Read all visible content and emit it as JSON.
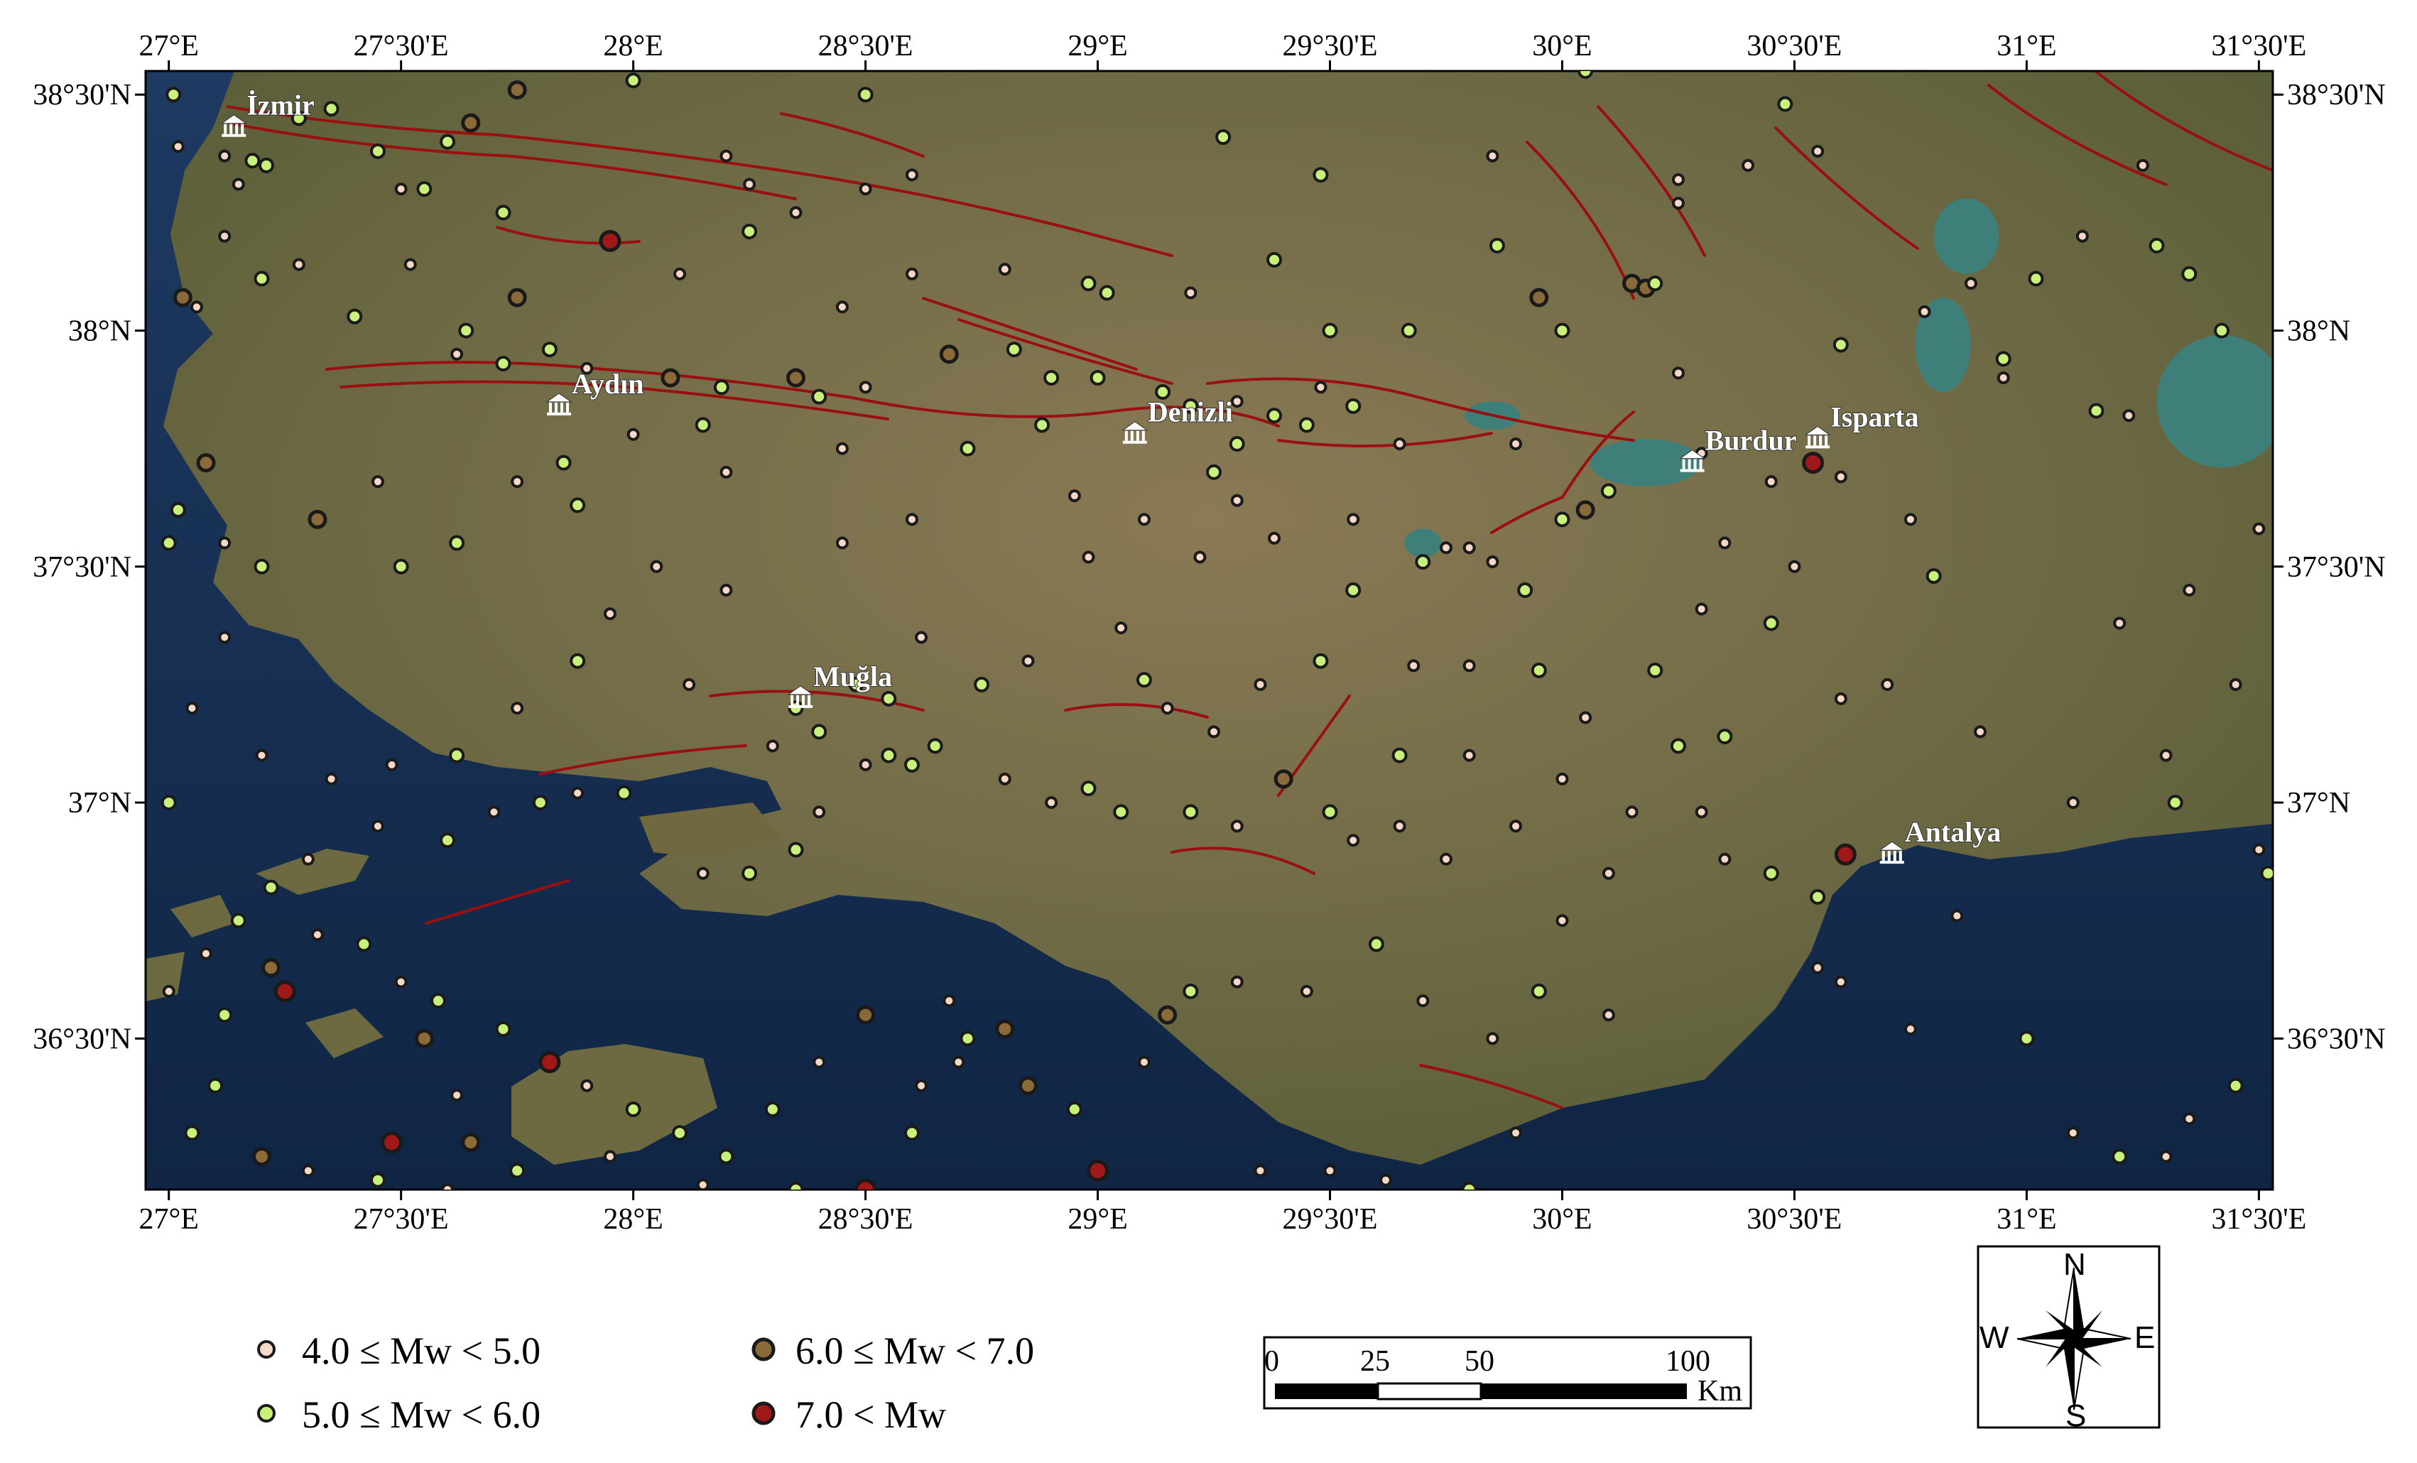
{
  "map": {
    "lon_min": 26.95,
    "lon_max": 31.53,
    "lat_min": 36.18,
    "lat_max": 38.55,
    "lon_ticks": [
      {
        "value": 27.0,
        "label": "27°E"
      },
      {
        "value": 27.5,
        "label": "27°30'E"
      },
      {
        "value": 28.0,
        "label": "28°E"
      },
      {
        "value": 28.5,
        "label": "28°30'E"
      },
      {
        "value": 29.0,
        "label": "29°E"
      },
      {
        "value": 29.5,
        "label": "29°30'E"
      },
      {
        "value": 30.0,
        "label": "30°E"
      },
      {
        "value": 30.5,
        "label": "30°30'E"
      },
      {
        "value": 31.0,
        "label": "31°E"
      },
      {
        "value": 31.5,
        "label": "31°30'E"
      }
    ],
    "lat_ticks": [
      {
        "value": 38.5,
        "label": "38°30'N"
      },
      {
        "value": 38.0,
        "label": "38°N"
      },
      {
        "value": 37.5,
        "label": "37°30'N"
      },
      {
        "value": 37.0,
        "label": "37°N"
      },
      {
        "value": 36.5,
        "label": "36°30'N"
      }
    ],
    "cities": [
      {
        "name": "İzmir",
        "lon": 27.14,
        "lat": 38.43
      },
      {
        "name": "Aydın",
        "lon": 27.84,
        "lat": 37.84
      },
      {
        "name": "Denizli",
        "lon": 29.08,
        "lat": 37.78
      },
      {
        "name": "Burdur",
        "lon": 30.28,
        "lat": 37.72
      },
      {
        "name": "Isparta",
        "lon": 30.55,
        "lat": 37.77
      },
      {
        "name": "Muğla",
        "lon": 28.36,
        "lat": 37.22
      },
      {
        "name": "Antalya",
        "lon": 30.71,
        "lat": 36.89
      }
    ],
    "lakes": [
      {
        "name": "",
        "lon": 30.18,
        "lat": 37.72,
        "rx": 0.12,
        "ry": 0.05
      },
      {
        "name": "",
        "lon": 30.87,
        "lat": 38.2,
        "rx": 0.07,
        "ry": 0.08
      },
      {
        "name": "",
        "lon": 30.82,
        "lat": 37.97,
        "rx": 0.06,
        "ry": 0.1
      },
      {
        "name": "",
        "lon": 31.42,
        "lat": 37.85,
        "rx": 0.14,
        "ry": 0.14
      },
      {
        "name": "",
        "lon": 29.7,
        "lat": 37.55,
        "rx": 0.04,
        "ry": 0.03
      },
      {
        "name": "",
        "lon": 29.85,
        "lat": 37.82,
        "rx": 0.06,
        "ry": 0.03
      }
    ]
  },
  "magnitude_classes": [
    {
      "key": "m4",
      "label": "4.0 ≤ Mw < 5.0",
      "fill": "#f6d8c6",
      "stroke": "#1a1a1a"
    },
    {
      "key": "m5",
      "label": "5.0 ≤ Mw < 6.0",
      "fill": "#c8f07a",
      "stroke": "#1a1a1a"
    },
    {
      "key": "m6",
      "label": "6.0 ≤ Mw < 7.0",
      "fill": "#8b6a3a",
      "stroke": "#1a1a1a"
    },
    {
      "key": "m7",
      "label": "7.0 < Mw",
      "fill": "#a01818",
      "stroke": "#1a1a1a"
    }
  ],
  "earthquakes": [
    [
      27.01,
      38.5,
      "m5"
    ],
    [
      27.02,
      38.39,
      "m4"
    ],
    [
      27.12,
      38.37,
      "m4"
    ],
    [
      27.18,
      38.36,
      "m5"
    ],
    [
      27.21,
      38.35,
      "m5"
    ],
    [
      27.15,
      38.31,
      "m4"
    ],
    [
      27.28,
      38.45,
      "m5"
    ],
    [
      27.35,
      38.47,
      "m5"
    ],
    [
      27.45,
      38.38,
      "m5"
    ],
    [
      27.6,
      38.4,
      "m5"
    ],
    [
      27.65,
      38.44,
      "m6"
    ],
    [
      27.75,
      38.51,
      "m6"
    ],
    [
      27.5,
      38.3,
      "m4"
    ],
    [
      27.55,
      38.3,
      "m5"
    ],
    [
      27.72,
      38.25,
      "m5"
    ],
    [
      28.0,
      38.53,
      "m5"
    ],
    [
      28.2,
      38.37,
      "m4"
    ],
    [
      28.25,
      38.31,
      "m4"
    ],
    [
      28.35,
      38.25,
      "m4"
    ],
    [
      28.5,
      38.3,
      "m4"
    ],
    [
      28.5,
      38.5,
      "m5"
    ],
    [
      28.6,
      38.33,
      "m4"
    ],
    [
      27.03,
      38.07,
      "m6"
    ],
    [
      27.06,
      38.05,
      "m4"
    ],
    [
      27.12,
      38.2,
      "m4"
    ],
    [
      27.2,
      38.11,
      "m5"
    ],
    [
      27.28,
      38.14,
      "m4"
    ],
    [
      27.4,
      38.03,
      "m5"
    ],
    [
      27.52,
      38.14,
      "m4"
    ],
    [
      27.64,
      38.0,
      "m5"
    ],
    [
      27.75,
      38.07,
      "m6"
    ],
    [
      27.82,
      37.96,
      "m5"
    ],
    [
      27.95,
      38.19,
      "m7"
    ],
    [
      28.1,
      38.12,
      "m4"
    ],
    [
      28.25,
      38.21,
      "m5"
    ],
    [
      27.62,
      37.95,
      "m4"
    ],
    [
      27.72,
      37.93,
      "m5"
    ],
    [
      27.9,
      37.92,
      "m4"
    ],
    [
      28.08,
      37.9,
      "m6"
    ],
    [
      28.19,
      37.88,
      "m5"
    ],
    [
      28.35,
      37.9,
      "m6"
    ],
    [
      28.4,
      37.86,
      "m5"
    ],
    [
      28.5,
      37.88,
      "m4"
    ],
    [
      28.68,
      37.95,
      "m6"
    ],
    [
      28.82,
      37.96,
      "m5"
    ],
    [
      28.9,
      37.9,
      "m5"
    ],
    [
      29.0,
      37.9,
      "m5"
    ],
    [
      29.14,
      37.87,
      "m5"
    ],
    [
      29.2,
      37.84,
      "m5"
    ],
    [
      29.3,
      37.85,
      "m4"
    ],
    [
      29.38,
      37.82,
      "m5"
    ],
    [
      29.45,
      37.8,
      "m5"
    ],
    [
      29.48,
      37.88,
      "m4"
    ],
    [
      29.55,
      37.84,
      "m5"
    ],
    [
      29.3,
      37.76,
      "m5"
    ],
    [
      29.25,
      37.7,
      "m5"
    ],
    [
      29.3,
      37.64,
      "m4"
    ],
    [
      28.98,
      38.1,
      "m5"
    ],
    [
      29.02,
      38.08,
      "m5"
    ],
    [
      28.8,
      38.13,
      "m4"
    ],
    [
      28.6,
      38.12,
      "m4"
    ],
    [
      28.45,
      38.05,
      "m4"
    ],
    [
      29.2,
      38.08,
      "m4"
    ],
    [
      29.38,
      38.15,
      "m5"
    ],
    [
      29.48,
      38.33,
      "m5"
    ],
    [
      29.27,
      38.41,
      "m5"
    ],
    [
      29.5,
      38.0,
      "m5"
    ],
    [
      29.67,
      38.0,
      "m5"
    ],
    [
      29.86,
      38.18,
      "m5"
    ],
    [
      29.85,
      38.37,
      "m4"
    ],
    [
      29.95,
      38.07,
      "m6"
    ],
    [
      30.0,
      38.0,
      "m5"
    ],
    [
      30.05,
      38.55,
      "m5"
    ],
    [
      30.15,
      38.1,
      "m6"
    ],
    [
      30.18,
      38.09,
      "m6"
    ],
    [
      30.2,
      38.1,
      "m5"
    ],
    [
      30.25,
      38.32,
      "m4"
    ],
    [
      30.25,
      38.27,
      "m4"
    ],
    [
      30.4,
      38.35,
      "m4"
    ],
    [
      30.48,
      38.48,
      "m5"
    ],
    [
      30.55,
      38.38,
      "m4"
    ],
    [
      30.6,
      37.97,
      "m5"
    ],
    [
      30.78,
      38.04,
      "m4"
    ],
    [
      30.88,
      38.1,
      "m4"
    ],
    [
      30.95,
      37.94,
      "m5"
    ],
    [
      31.02,
      38.11,
      "m5"
    ],
    [
      31.12,
      38.2,
      "m4"
    ],
    [
      31.25,
      38.35,
      "m4"
    ],
    [
      31.28,
      38.18,
      "m5"
    ],
    [
      31.35,
      38.12,
      "m5"
    ],
    [
      31.42,
      38.0,
      "m5"
    ],
    [
      31.15,
      37.83,
      "m5"
    ],
    [
      31.22,
      37.82,
      "m4"
    ],
    [
      30.95,
      37.9,
      "m4"
    ],
    [
      30.3,
      37.74,
      "m4"
    ],
    [
      30.45,
      37.68,
      "m4"
    ],
    [
      30.54,
      37.72,
      "m7"
    ],
    [
      30.6,
      37.69,
      "m4"
    ],
    [
      30.25,
      37.91,
      "m4"
    ],
    [
      30.1,
      37.66,
      "m5"
    ],
    [
      30.05,
      37.62,
      "m6"
    ],
    [
      30.0,
      37.6,
      "m5"
    ],
    [
      29.85,
      37.51,
      "m4"
    ],
    [
      29.8,
      37.54,
      "m4"
    ],
    [
      29.75,
      37.54,
      "m4"
    ],
    [
      29.7,
      37.51,
      "m5"
    ],
    [
      29.9,
      37.76,
      "m4"
    ],
    [
      29.65,
      37.76,
      "m4"
    ],
    [
      29.55,
      37.6,
      "m4"
    ],
    [
      28.98,
      37.52,
      "m4"
    ],
    [
      29.05,
      37.37,
      "m4"
    ],
    [
      29.1,
      37.26,
      "m5"
    ],
    [
      29.35,
      37.25,
      "m4"
    ],
    [
      29.48,
      37.3,
      "m5"
    ],
    [
      29.55,
      37.45,
      "m5"
    ],
    [
      29.68,
      37.29,
      "m4"
    ],
    [
      29.8,
      37.29,
      "m4"
    ],
    [
      29.92,
      37.45,
      "m5"
    ],
    [
      29.95,
      37.28,
      "m5"
    ],
    [
      30.05,
      37.18,
      "m4"
    ],
    [
      30.2,
      37.28,
      "m5"
    ],
    [
      30.3,
      37.41,
      "m4"
    ],
    [
      30.45,
      37.38,
      "m5"
    ],
    [
      30.6,
      37.22,
      "m4"
    ],
    [
      30.35,
      37.14,
      "m5"
    ],
    [
      30.25,
      37.12,
      "m5"
    ],
    [
      30.15,
      36.98,
      "m4"
    ],
    [
      30.3,
      36.98,
      "m4"
    ],
    [
      30.35,
      36.88,
      "m4"
    ],
    [
      30.45,
      36.85,
      "m5"
    ],
    [
      30.55,
      36.8,
      "m5"
    ],
    [
      30.61,
      36.89,
      "m7"
    ],
    [
      30.55,
      36.65,
      "m4"
    ],
    [
      30.6,
      36.62,
      "m4"
    ],
    [
      30.75,
      36.52,
      "m4"
    ],
    [
      30.85,
      36.76,
      "m4"
    ],
    [
      31.0,
      36.5,
      "m5"
    ],
    [
      31.1,
      36.3,
      "m4"
    ],
    [
      31.2,
      36.25,
      "m5"
    ],
    [
      31.3,
      36.25,
      "m4"
    ],
    [
      31.35,
      36.33,
      "m4"
    ],
    [
      31.45,
      36.4,
      "m5"
    ],
    [
      31.5,
      36.9,
      "m4"
    ],
    [
      31.52,
      36.85,
      "m5"
    ],
    [
      31.32,
      37.0,
      "m5"
    ],
    [
      31.3,
      37.1,
      "m4"
    ],
    [
      31.45,
      37.25,
      "m4"
    ],
    [
      31.35,
      37.45,
      "m4"
    ],
    [
      31.5,
      37.58,
      "m4"
    ],
    [
      31.2,
      37.38,
      "m4"
    ],
    [
      30.8,
      37.48,
      "m5"
    ],
    [
      30.75,
      37.6,
      "m4"
    ],
    [
      28.12,
      37.25,
      "m4"
    ],
    [
      28.35,
      37.2,
      "m5"
    ],
    [
      28.48,
      37.25,
      "m5"
    ],
    [
      28.55,
      37.22,
      "m5"
    ],
    [
      28.3,
      37.12,
      "m4"
    ],
    [
      28.4,
      37.15,
      "m5"
    ],
    [
      28.5,
      37.08,
      "m4"
    ],
    [
      28.55,
      37.1,
      "m5"
    ],
    [
      28.6,
      37.08,
      "m5"
    ],
    [
      28.65,
      37.12,
      "m5"
    ],
    [
      28.8,
      37.05,
      "m4"
    ],
    [
      28.9,
      37.0,
      "m4"
    ],
    [
      28.98,
      37.03,
      "m5"
    ],
    [
      29.05,
      36.98,
      "m5"
    ],
    [
      29.2,
      36.98,
      "m5"
    ],
    [
      29.3,
      36.95,
      "m4"
    ],
    [
      29.4,
      37.05,
      "m6"
    ],
    [
      29.5,
      36.98,
      "m5"
    ],
    [
      29.55,
      36.92,
      "m4"
    ],
    [
      29.65,
      36.95,
      "m4"
    ],
    [
      29.75,
      36.88,
      "m4"
    ],
    [
      28.4,
      36.98,
      "m4"
    ],
    [
      28.35,
      36.9,
      "m5"
    ],
    [
      28.25,
      36.85,
      "m5"
    ],
    [
      28.15,
      36.85,
      "m4"
    ],
    [
      27.98,
      37.02,
      "m5"
    ],
    [
      27.88,
      37.02,
      "m4"
    ],
    [
      27.8,
      37.0,
      "m5"
    ],
    [
      27.7,
      36.98,
      "m4"
    ],
    [
      27.6,
      36.92,
      "m5"
    ],
    [
      27.45,
      36.95,
      "m4"
    ],
    [
      27.3,
      36.88,
      "m4"
    ],
    [
      27.22,
      36.82,
      "m5"
    ],
    [
      27.15,
      36.75,
      "m5"
    ],
    [
      27.08,
      36.68,
      "m4"
    ],
    [
      27.0,
      36.6,
      "m4"
    ],
    [
      27.12,
      36.55,
      "m5"
    ],
    [
      27.22,
      36.65,
      "m6"
    ],
    [
      27.25,
      36.6,
      "m7"
    ],
    [
      27.32,
      36.72,
      "m4"
    ],
    [
      27.42,
      36.7,
      "m5"
    ],
    [
      27.5,
      36.62,
      "m4"
    ],
    [
      27.58,
      36.58,
      "m5"
    ],
    [
      27.72,
      36.52,
      "m5"
    ],
    [
      27.55,
      36.5,
      "m6"
    ],
    [
      27.62,
      36.38,
      "m4"
    ],
    [
      27.48,
      36.28,
      "m7"
    ],
    [
      27.65,
      36.28,
      "m6"
    ],
    [
      27.82,
      36.45,
      "m7"
    ],
    [
      27.9,
      36.4,
      "m4"
    ],
    [
      28.0,
      36.35,
      "m5"
    ],
    [
      28.1,
      36.3,
      "m5"
    ],
    [
      28.2,
      36.25,
      "m5"
    ],
    [
      28.3,
      36.35,
      "m5"
    ],
    [
      28.4,
      36.45,
      "m4"
    ],
    [
      28.5,
      36.55,
      "m6"
    ],
    [
      28.5,
      36.18,
      "m7"
    ],
    [
      28.6,
      36.3,
      "m5"
    ],
    [
      28.7,
      36.45,
      "m4"
    ],
    [
      28.8,
      36.52,
      "m6"
    ],
    [
      28.85,
      36.4,
      "m6"
    ],
    [
      28.95,
      36.35,
      "m5"
    ],
    [
      29.0,
      36.22,
      "m7"
    ],
    [
      29.1,
      36.45,
      "m4"
    ],
    [
      29.15,
      36.55,
      "m6"
    ],
    [
      29.2,
      36.6,
      "m5"
    ],
    [
      29.3,
      36.62,
      "m4"
    ],
    [
      29.45,
      36.6,
      "m4"
    ],
    [
      29.6,
      36.7,
      "m5"
    ],
    [
      29.7,
      36.58,
      "m4"
    ],
    [
      29.85,
      36.5,
      "m4"
    ],
    [
      29.95,
      36.6,
      "m5"
    ],
    [
      30.1,
      36.55,
      "m4"
    ],
    [
      29.35,
      36.22,
      "m4"
    ],
    [
      29.5,
      36.22,
      "m4"
    ],
    [
      29.62,
      36.2,
      "m4"
    ],
    [
      29.8,
      36.18,
      "m5"
    ],
    [
      29.9,
      36.3,
      "m4"
    ],
    [
      28.68,
      36.58,
      "m4"
    ],
    [
      28.72,
      36.5,
      "m5"
    ],
    [
      28.62,
      36.4,
      "m4"
    ],
    [
      27.1,
      36.4,
      "m5"
    ],
    [
      27.2,
      36.25,
      "m6"
    ],
    [
      27.3,
      36.22,
      "m4"
    ],
    [
      27.05,
      36.3,
      "m5"
    ],
    [
      27.45,
      36.2,
      "m5"
    ],
    [
      27.6,
      36.18,
      "m4"
    ],
    [
      27.75,
      36.22,
      "m5"
    ],
    [
      27.95,
      36.25,
      "m4"
    ],
    [
      28.15,
      36.19,
      "m4"
    ],
    [
      28.35,
      36.18,
      "m5"
    ],
    [
      27.0,
      37.55,
      "m5"
    ],
    [
      27.02,
      37.62,
      "m5"
    ],
    [
      27.08,
      37.72,
      "m6"
    ],
    [
      27.12,
      37.55,
      "m4"
    ],
    [
      27.12,
      37.35,
      "m4"
    ],
    [
      27.2,
      37.5,
      "m5"
    ],
    [
      27.32,
      37.6,
      "m6"
    ],
    [
      27.45,
      37.68,
      "m4"
    ],
    [
      27.5,
      37.5,
      "m5"
    ],
    [
      27.62,
      37.55,
      "m5"
    ],
    [
      27.75,
      37.68,
      "m4"
    ],
    [
      27.85,
      37.72,
      "m5"
    ],
    [
      27.88,
      37.63,
      "m5"
    ],
    [
      28.0,
      37.78,
      "m4"
    ],
    [
      28.15,
      37.8,
      "m5"
    ],
    [
      28.2,
      37.7,
      "m4"
    ],
    [
      28.45,
      37.75,
      "m4"
    ],
    [
      28.45,
      37.55,
      "m4"
    ],
    [
      28.6,
      37.6,
      "m4"
    ],
    [
      28.72,
      37.75,
      "m5"
    ],
    [
      28.88,
      37.8,
      "m5"
    ],
    [
      28.95,
      37.65,
      "m4"
    ],
    [
      29.1,
      37.6,
      "m4"
    ],
    [
      29.22,
      37.52,
      "m4"
    ],
    [
      29.38,
      37.56,
      "m4"
    ],
    [
      28.2,
      37.45,
      "m4"
    ],
    [
      28.05,
      37.5,
      "m4"
    ],
    [
      27.95,
      37.4,
      "m4"
    ],
    [
      27.88,
      37.3,
      "m5"
    ],
    [
      27.75,
      37.2,
      "m4"
    ],
    [
      27.62,
      37.1,
      "m5"
    ],
    [
      27.48,
      37.08,
      "m4"
    ],
    [
      27.35,
      37.05,
      "m4"
    ],
    [
      27.2,
      37.1,
      "m4"
    ],
    [
      27.05,
      37.2,
      "m4"
    ],
    [
      27.0,
      37.0,
      "m5"
    ],
    [
      28.85,
      37.3,
      "m4"
    ],
    [
      28.75,
      37.25,
      "m5"
    ],
    [
      28.62,
      37.35,
      "m4"
    ],
    [
      29.65,
      37.1,
      "m5"
    ],
    [
      29.8,
      37.1,
      "m4"
    ],
    [
      29.9,
      36.95,
      "m4"
    ],
    [
      30.0,
      36.75,
      "m4"
    ],
    [
      30.0,
      37.05,
      "m4"
    ],
    [
      30.1,
      36.85,
      "m4"
    ],
    [
      29.25,
      37.15,
      "m4"
    ],
    [
      29.15,
      37.2,
      "m4"
    ],
    [
      30.7,
      37.25,
      "m4"
    ],
    [
      30.9,
      37.15,
      "m4"
    ],
    [
      31.1,
      37.0,
      "m4"
    ],
    [
      30.5,
      37.5,
      "m4"
    ],
    [
      30.35,
      37.55,
      "m4"
    ]
  ],
  "legend": {
    "items": [
      {
        "key": "m4",
        "label": "4.0 ≤ Mw < 5.0"
      },
      {
        "key": "m5",
        "label": "5.0 ≤ Mw < 6.0"
      },
      {
        "key": "m6",
        "label": "6.0 ≤ Mw < 7.0"
      },
      {
        "key": "m7",
        "label": "7.0 < Mw"
      }
    ]
  },
  "scale_bar": {
    "labels": [
      "0",
      "25",
      "50",
      "100"
    ],
    "unit": "Km"
  },
  "compass": {
    "n": "N",
    "s": "S",
    "e": "E",
    "w": "W"
  },
  "colors": {
    "fault": "#9a1010",
    "sea": "#1a3358",
    "land": "#6f6b45",
    "frame": "#000000"
  }
}
